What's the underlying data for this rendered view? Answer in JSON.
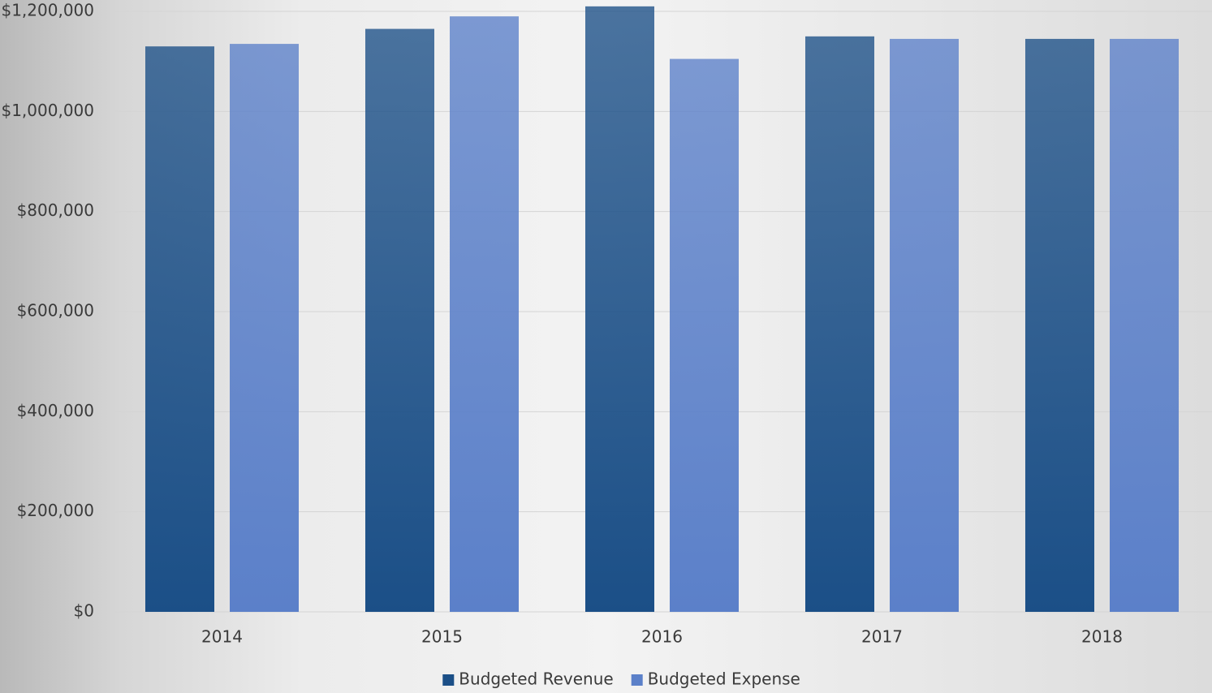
{
  "chart_data": {
    "type": "bar",
    "categories": [
      "2014",
      "2015",
      "2016",
      "2017",
      "2018"
    ],
    "series": [
      {
        "name": "Budgeted Revenue",
        "color": "#1b4f87",
        "values": [
          1130000,
          1165000,
          1210000,
          1150000,
          1145000
        ]
      },
      {
        "name": "Budgeted Expense",
        "color": "#5b80c9",
        "values": [
          1135000,
          1190000,
          1105000,
          1145000,
          1145000
        ]
      }
    ],
    "ylim": [
      0,
      1200000
    ],
    "yticks": [
      {
        "value": 0,
        "label": "$0"
      },
      {
        "value": 200000,
        "label": "$200,000"
      },
      {
        "value": 400000,
        "label": "$400,000"
      },
      {
        "value": 600000,
        "label": "$600,000"
      },
      {
        "value": 800000,
        "label": "$800,000"
      },
      {
        "value": 1000000,
        "label": "$1,000,000"
      },
      {
        "value": 1200000,
        "label": "$1,200,000"
      }
    ],
    "grid": true,
    "legend": "bottom"
  }
}
